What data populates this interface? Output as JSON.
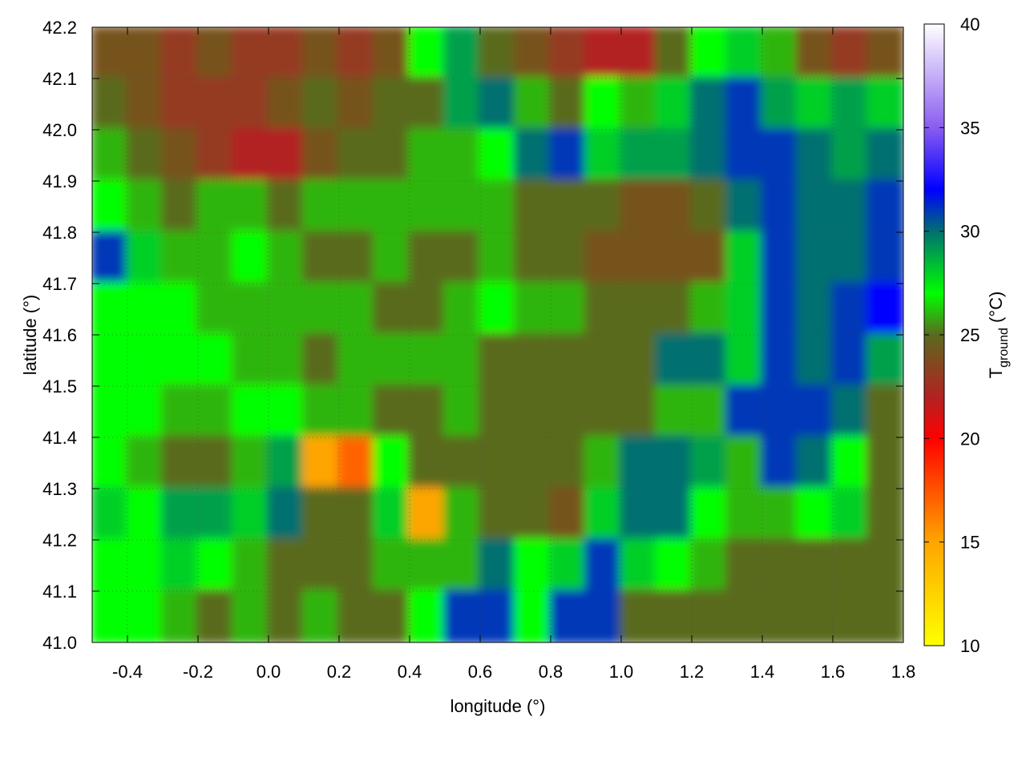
{
  "chart_data": {
    "type": "heatmap",
    "title": "",
    "xlabel": "longitude (°)",
    "ylabel": "latitude (°)",
    "colorbar_label": {
      "main": "T",
      "sub": "ground",
      "unit": " (°C)"
    },
    "xlim": [
      -0.5,
      1.8
    ],
    "ylim": [
      41.0,
      42.2
    ],
    "clim": [
      10,
      40
    ],
    "xticks": [
      "-0.4",
      "-0.2",
      "0.0",
      "0.2",
      "0.4",
      "0.6",
      "0.8",
      "1.0",
      "1.2",
      "1.4",
      "1.6",
      "1.8"
    ],
    "yticks": [
      "41.0",
      "41.1",
      "41.2",
      "41.3",
      "41.4",
      "41.5",
      "41.6",
      "41.7",
      "41.8",
      "41.9",
      "42.0",
      "42.1",
      "42.2"
    ],
    "cticks": [
      "10",
      "15",
      "20",
      "25",
      "30",
      "35",
      "40"
    ],
    "grid": true,
    "contours": true,
    "palette": [
      {
        "v": 10,
        "c": "#ffff00"
      },
      {
        "v": 15,
        "c": "#ffa500"
      },
      {
        "v": 20,
        "c": "#ff0000"
      },
      {
        "v": 22,
        "c": "#b22222"
      },
      {
        "v": 25,
        "c": "#5a6a1e"
      },
      {
        "v": 27,
        "c": "#00ff00"
      },
      {
        "v": 30,
        "c": "#007070"
      },
      {
        "v": 32,
        "c": "#0000ff"
      },
      {
        "v": 35,
        "c": "#8a5cf0"
      },
      {
        "v": 40,
        "c": "#ffffff"
      }
    ],
    "grid_lon_centers": [
      -0.45,
      -0.35,
      -0.25,
      -0.15,
      -0.05,
      0.05,
      0.15,
      0.25,
      0.35,
      0.45,
      0.55,
      0.65,
      0.75,
      0.85,
      0.95,
      1.05,
      1.15,
      1.25,
      1.35,
      1.45,
      1.55,
      1.65,
      1.75
    ],
    "grid_lat_centers": [
      42.15,
      42.05,
      41.95,
      41.85,
      41.75,
      41.65,
      41.55,
      41.45,
      41.35,
      41.25,
      41.15,
      41.05
    ],
    "values": [
      [
        24,
        24,
        23,
        24,
        23,
        23,
        24,
        23,
        24,
        27,
        29,
        25,
        24,
        23,
        22,
        22,
        25,
        27,
        28,
        26,
        24,
        23,
        24
      ],
      [
        25,
        24,
        23,
        23,
        23,
        24,
        25,
        24,
        25,
        25,
        29,
        30,
        26,
        25,
        27,
        26,
        28,
        30,
        31,
        29,
        28,
        29,
        28
      ],
      [
        26,
        25,
        24,
        23,
        22,
        22,
        24,
        25,
        25,
        26,
        26,
        27,
        30,
        31,
        28,
        29,
        29,
        30,
        31,
        31,
        30,
        29,
        30
      ],
      [
        27,
        26,
        25,
        26,
        26,
        25,
        26,
        26,
        26,
        26,
        26,
        26,
        25,
        25,
        25,
        24,
        24,
        25,
        30,
        31,
        30,
        30,
        31
      ],
      [
        31,
        28,
        26,
        26,
        27,
        26,
        25,
        25,
        26,
        25,
        25,
        26,
        25,
        25,
        24,
        24,
        24,
        24,
        28,
        31,
        30,
        30,
        31
      ],
      [
        27,
        27,
        27,
        26,
        26,
        26,
        26,
        26,
        25,
        25,
        26,
        27,
        26,
        26,
        25,
        25,
        25,
        26,
        28,
        31,
        30,
        31,
        32
      ],
      [
        27,
        27,
        27,
        27,
        26,
        26,
        25,
        26,
        26,
        26,
        26,
        25,
        25,
        25,
        25,
        25,
        30,
        30,
        28,
        31,
        30,
        31,
        29
      ],
      [
        27,
        27,
        26,
        26,
        27,
        27,
        26,
        26,
        25,
        25,
        26,
        25,
        25,
        25,
        25,
        25,
        26,
        26,
        31,
        31,
        31,
        30,
        25
      ],
      [
        27,
        26,
        25,
        25,
        26,
        29,
        15,
        17,
        27,
        25,
        25,
        25,
        25,
        25,
        26,
        30,
        30,
        29,
        26,
        31,
        30,
        27,
        25
      ],
      [
        28,
        27,
        29,
        29,
        28,
        30,
        25,
        25,
        28,
        15,
        26,
        25,
        25,
        24,
        28,
        30,
        30,
        27,
        26,
        26,
        27,
        28,
        25
      ],
      [
        27,
        27,
        28,
        27,
        26,
        25,
        25,
        25,
        26,
        26,
        26,
        30,
        27,
        28,
        31,
        28,
        27,
        26,
        25,
        25,
        25,
        25,
        25
      ],
      [
        27,
        27,
        26,
        25,
        26,
        25,
        26,
        25,
        25,
        27,
        31,
        31,
        27,
        31,
        31,
        25,
        25,
        25,
        25,
        25,
        25,
        25,
        25
      ]
    ]
  }
}
